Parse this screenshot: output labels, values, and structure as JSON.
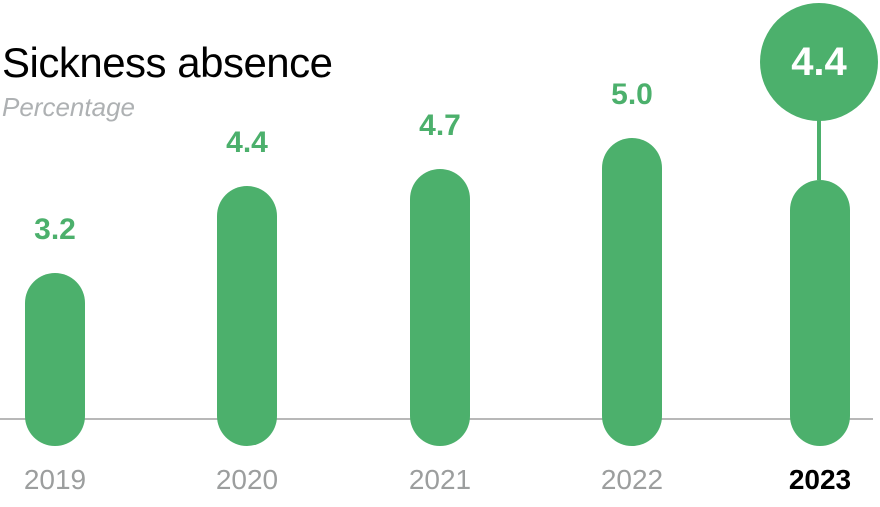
{
  "header": {
    "title": "Sickness absence",
    "subtitle": "Percentage"
  },
  "colors": {
    "bar_green": "#4CB06C",
    "value_label_green": "#4CB06C",
    "highlight_circle_green": "#4CB06C",
    "highlight_value_white": "#FFFFFF",
    "year_label_gray": "#9C9E9E",
    "highlight_year_black": "#000000",
    "subtitle_gray": "#AEB1B3",
    "axis_line_gray": "#B8B8B8",
    "title_black": "#000000",
    "background": "#FFFFFF"
  },
  "chart_data": {
    "type": "bar",
    "title": "Sickness absence",
    "subtitle": "Percentage",
    "unit": "Percentage",
    "categories": [
      "2019",
      "2020",
      "2021",
      "2022",
      "2023"
    ],
    "values": [
      3.2,
      4.4,
      4.7,
      5.0,
      4.4
    ],
    "value_labels": [
      "3.2",
      "4.4",
      "4.7",
      "5.0",
      "4.4"
    ],
    "series": [
      {
        "name": "Sickness absence percentage",
        "values": [
          3.2,
          4.4,
          4.7,
          5.0,
          4.4
        ]
      }
    ],
    "xlabel": "",
    "ylabel": "",
    "ylim": [
      0,
      5.6
    ],
    "grid": false,
    "legend_position": "none",
    "y_axis_ticks_visible": false,
    "baseline_axis_visible": true,
    "bar_shape": "pill-rounded-ends",
    "bar_color": "#4CB06C",
    "highlight": {
      "category": "2023",
      "value_label": "4.4",
      "style": "circle-callout-above-bar-with-stem",
      "circle_text_color": "#FFFFFF",
      "category_label_style": "bold-black"
    }
  }
}
